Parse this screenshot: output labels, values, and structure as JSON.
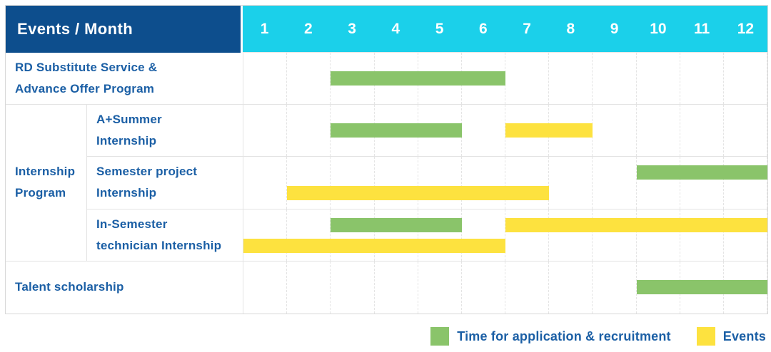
{
  "header": {
    "corner_label": "Events / Month",
    "months": [
      "1",
      "2",
      "3",
      "4",
      "5",
      "6",
      "7",
      "8",
      "9",
      "10",
      "11",
      "12"
    ]
  },
  "colors": {
    "navy": "#0d4e8d",
    "cyan": "#1bd0ea",
    "green": "#8ac46a",
    "yellow": "#fde23f",
    "text": "#1b5fa5"
  },
  "group": {
    "label_line1": "Internship",
    "label_line2": "Program"
  },
  "rows": [
    {
      "label_line1": "RD Substitute Service &",
      "label_line2": "Advance Offer Program",
      "lines": 1,
      "bars": [
        {
          "color": "green",
          "start": 3,
          "end": 6,
          "line": 0
        }
      ]
    },
    {
      "label_line1": "A+Summer",
      "label_line2": "Internship",
      "lines": 1,
      "bars": [
        {
          "color": "green",
          "start": 3,
          "end": 5,
          "line": 0
        },
        {
          "color": "yellow",
          "start": 7,
          "end": 8,
          "line": 0
        }
      ]
    },
    {
      "label_line1": "Semester project",
      "label_line2": "Internship",
      "lines": 2,
      "bars": [
        {
          "color": "green",
          "start": 10,
          "end": 12,
          "line": 0
        },
        {
          "color": "yellow",
          "start": 2,
          "end": 7,
          "line": 1
        }
      ]
    },
    {
      "label_line1": "In-Semester",
      "label_line2": "technician Internship",
      "lines": 2,
      "bars": [
        {
          "color": "green",
          "start": 3,
          "end": 5,
          "line": 0
        },
        {
          "color": "yellow",
          "start": 7,
          "end": 12,
          "line": 0
        },
        {
          "color": "yellow",
          "start": 1,
          "end": 6,
          "line": 1
        }
      ]
    },
    {
      "label_line1": "Talent scholarship",
      "label_line2": "",
      "lines": 1,
      "bars": [
        {
          "color": "green",
          "start": 10,
          "end": 12,
          "line": 0
        }
      ]
    }
  ],
  "legend": {
    "items": [
      {
        "color": "green",
        "label": "Time for application & recruitment"
      },
      {
        "color": "yellow",
        "label": "Events"
      }
    ]
  },
  "chart_data": {
    "type": "table",
    "title": "Events / Month",
    "xlabel": "Month",
    "x_ticks": [
      1,
      2,
      3,
      4,
      5,
      6,
      7,
      8,
      9,
      10,
      11,
      12
    ],
    "legend_entries": {
      "green": "Time for application & recruitment",
      "yellow": "Events"
    },
    "legend_position": "bottom-right",
    "grid": true,
    "rows": [
      {
        "event": "RD Substitute Service & Advance Offer Program",
        "group": null,
        "bars": [
          {
            "category": "Time for application & recruitment",
            "start_month": 3,
            "end_month": 6
          }
        ]
      },
      {
        "event": "A+Summer Internship",
        "group": "Internship Program",
        "bars": [
          {
            "category": "Time for application & recruitment",
            "start_month": 3,
            "end_month": 5
          },
          {
            "category": "Events",
            "start_month": 7,
            "end_month": 8
          }
        ]
      },
      {
        "event": "Semester project Internship",
        "group": "Internship Program",
        "bars": [
          {
            "category": "Time for application & recruitment",
            "start_month": 10,
            "end_month": 12
          },
          {
            "category": "Events",
            "start_month": 2,
            "end_month": 7
          }
        ]
      },
      {
        "event": "In-Semester technician Internship",
        "group": "Internship Program",
        "bars": [
          {
            "category": "Time for application & recruitment",
            "start_month": 3,
            "end_month": 5
          },
          {
            "category": "Events",
            "start_month": 7,
            "end_month": 12
          },
          {
            "category": "Events",
            "start_month": 1,
            "end_month": 6
          }
        ]
      },
      {
        "event": "Talent scholarship",
        "group": null,
        "bars": [
          {
            "category": "Time for application & recruitment",
            "start_month": 10,
            "end_month": 12
          }
        ]
      }
    ]
  }
}
